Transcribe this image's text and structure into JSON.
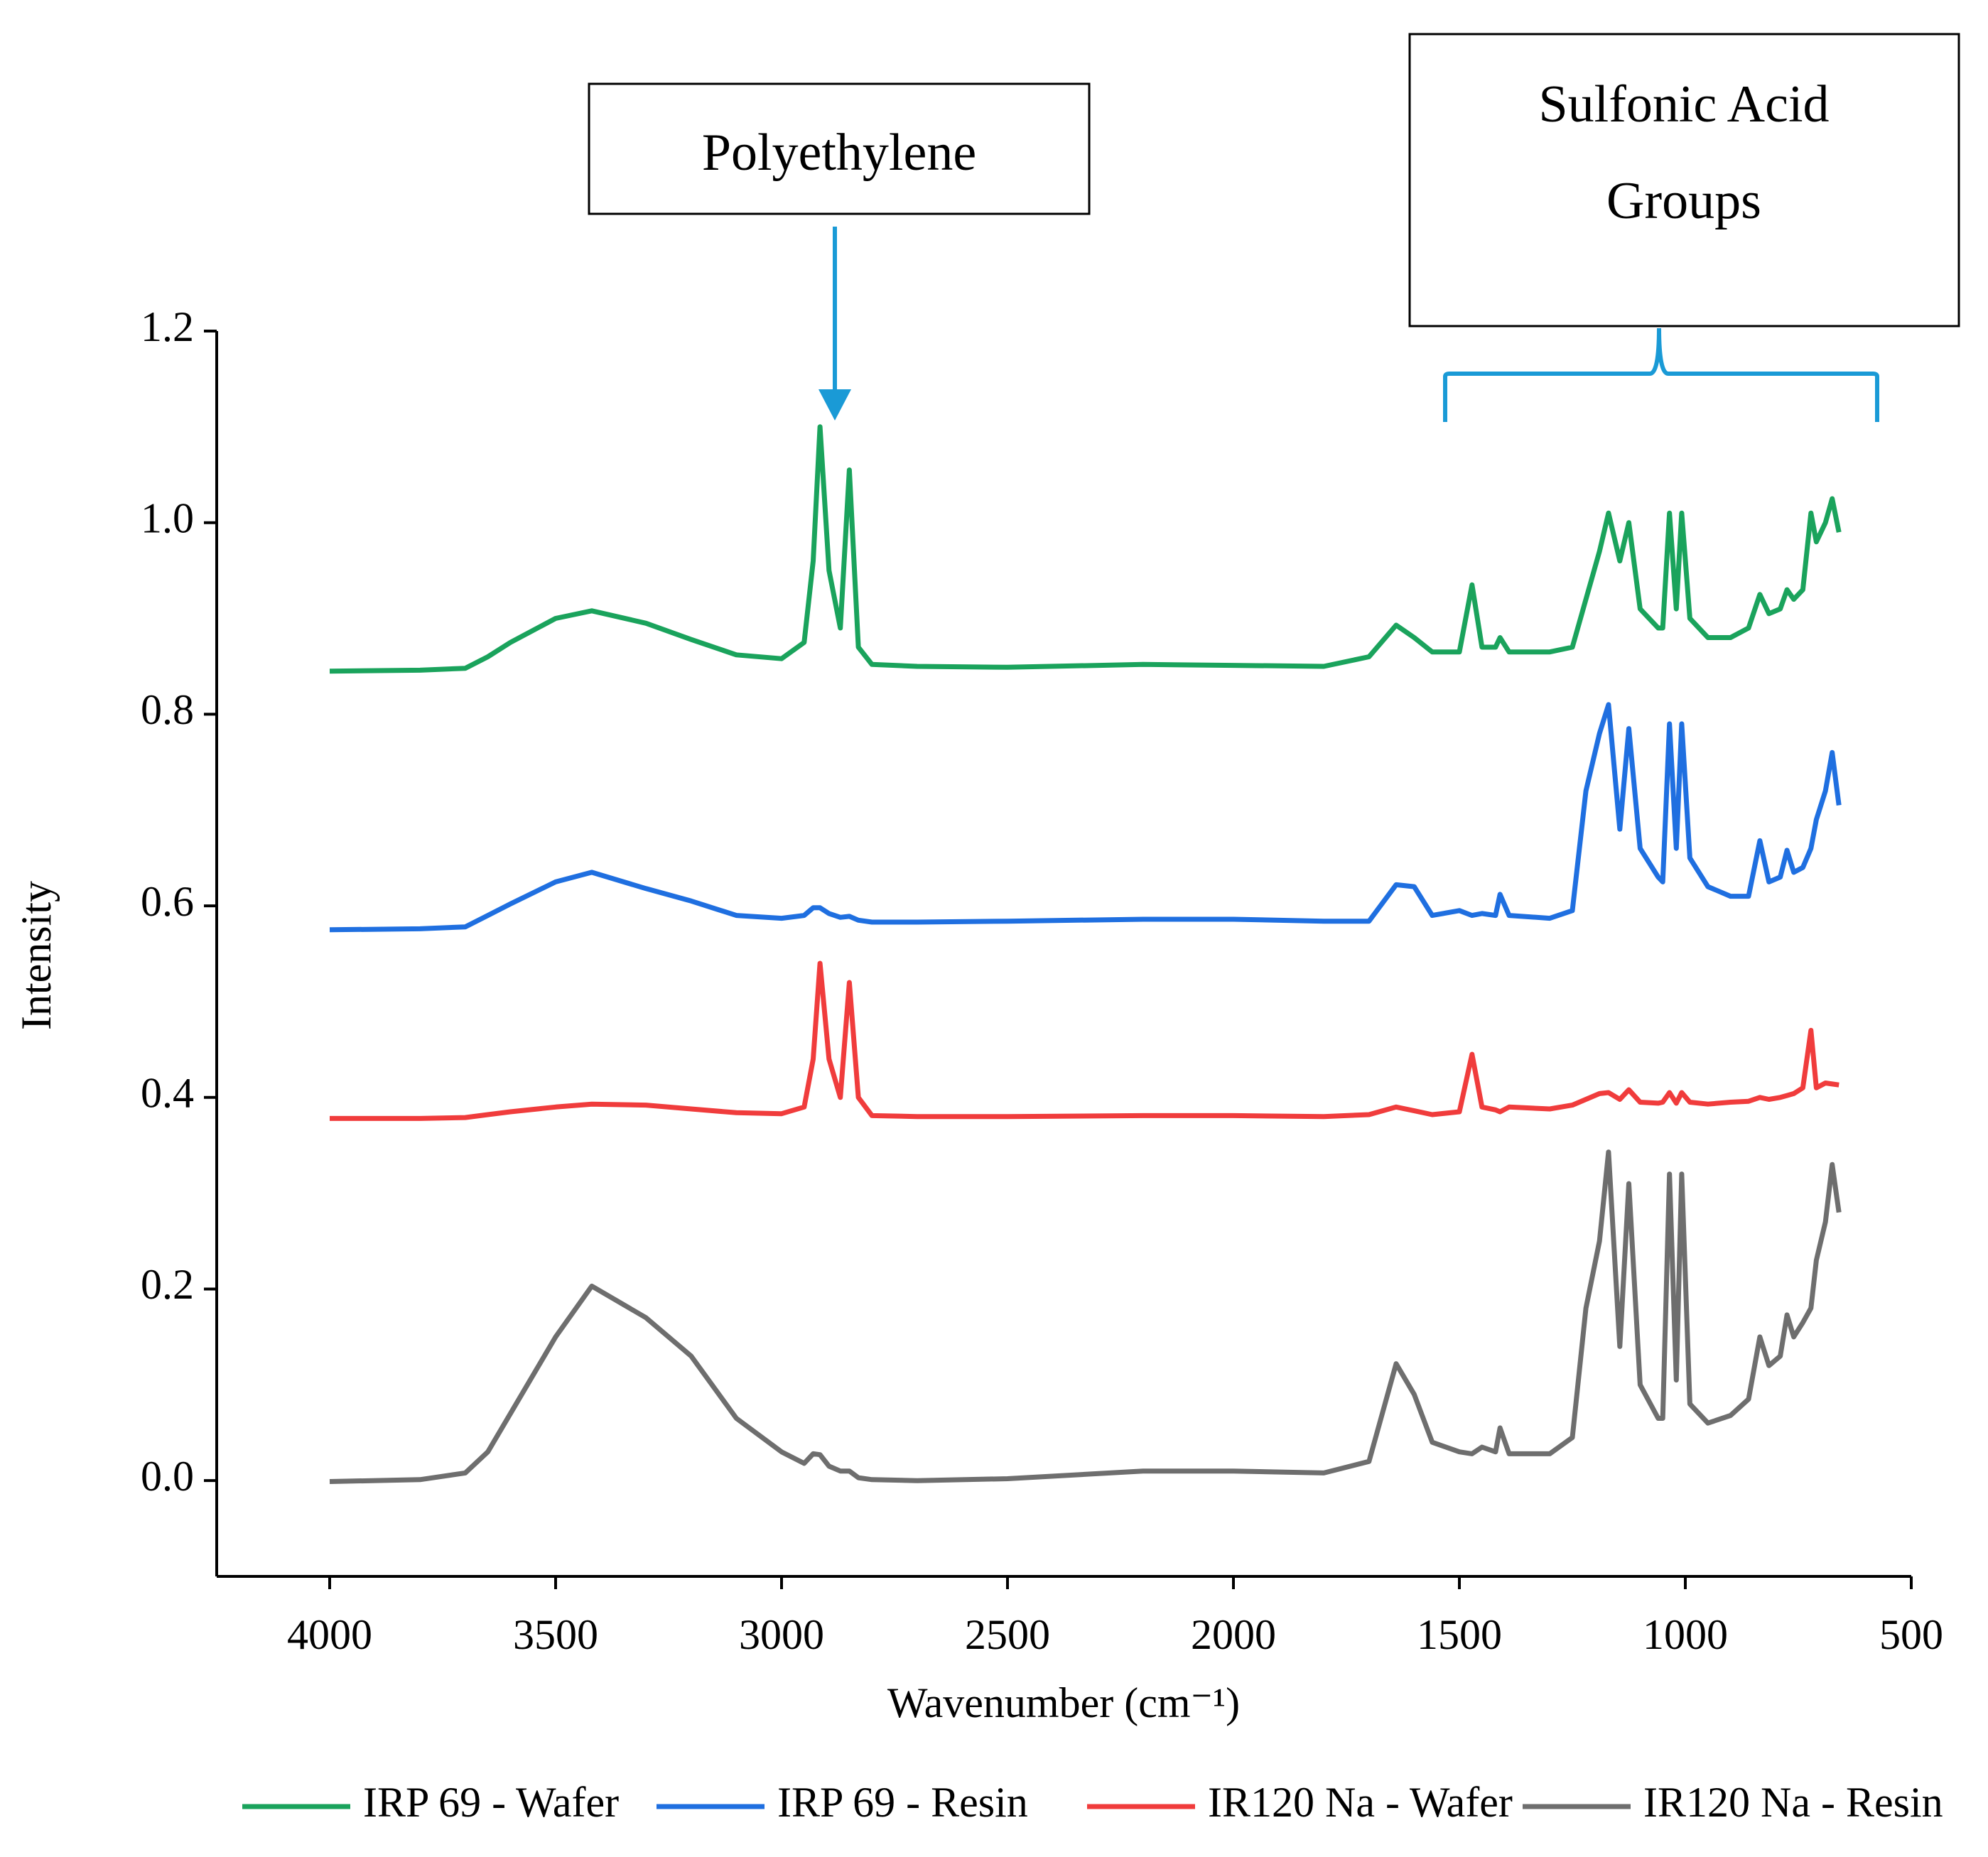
{
  "chart_data": {
    "type": "line",
    "xlabel": "Wavenumber (cm⁻¹)",
    "ylabel": "Intensity",
    "annotations": [
      "Polyethylene",
      "Sulfonic Acid",
      "Groups"
    ],
    "xlim": [
      4250,
      500
    ],
    "xticks": [
      4000,
      3500,
      3000,
      2500,
      2000,
      1500,
      1000,
      500
    ],
    "ylim": [
      -0.1,
      1.2
    ],
    "yticks": [
      {
        "value": 0,
        "label": "0.0"
      },
      0.2,
      0.4,
      0.6,
      0.8,
      {
        "value": 1,
        "label": "1.0"
      },
      1.2
    ],
    "x": [
      4000,
      3800,
      3700,
      3650,
      3600,
      3500,
      3420,
      3300,
      3200,
      3100,
      3000,
      2950,
      2930,
      2915,
      2895,
      2870,
      2850,
      2830,
      2800,
      2700,
      2500,
      2200,
      2000,
      1800,
      1700,
      1640,
      1600,
      1560,
      1500,
      1472,
      1450,
      1420,
      1410,
      1390,
      1300,
      1250,
      1220,
      1190,
      1170,
      1145,
      1125,
      1100,
      1060,
      1050,
      1035,
      1020,
      1008,
      990,
      950,
      900,
      860,
      835,
      815,
      790,
      775,
      760,
      740,
      722,
      710,
      690,
      675,
      660
    ],
    "series": [
      {
        "name": "IRP 69 - Wafer",
        "color": "#1aa35c",
        "values": [
          0.845,
          0.846,
          0.848,
          0.86,
          0.875,
          0.9,
          0.908,
          0.895,
          0.878,
          0.862,
          0.858,
          0.875,
          0.96,
          1.1,
          0.95,
          0.89,
          1.055,
          0.87,
          0.852,
          0.85,
          0.849,
          0.852,
          0.851,
          0.85,
          0.86,
          0.893,
          0.88,
          0.865,
          0.865,
          0.935,
          0.87,
          0.87,
          0.88,
          0.865,
          0.865,
          0.87,
          0.92,
          0.97,
          1.01,
          0.96,
          1.0,
          0.91,
          0.89,
          0.89,
          1.01,
          0.91,
          1.01,
          0.9,
          0.88,
          0.88,
          0.89,
          0.925,
          0.905,
          0.91,
          0.93,
          0.92,
          0.93,
          1.01,
          0.98,
          1.0,
          1.025,
          0.99
        ]
      },
      {
        "name": "IRP 69 - Resin",
        "color": "#1f6fe0",
        "values": [
          0.575,
          0.576,
          0.578,
          0.59,
          0.602,
          0.625,
          0.635,
          0.618,
          0.605,
          0.59,
          0.587,
          0.59,
          0.598,
          0.598,
          0.592,
          0.588,
          0.589,
          0.585,
          0.583,
          0.583,
          0.584,
          0.586,
          0.586,
          0.584,
          0.584,
          0.622,
          0.62,
          0.59,
          0.595,
          0.59,
          0.592,
          0.59,
          0.612,
          0.59,
          0.587,
          0.595,
          0.72,
          0.78,
          0.81,
          0.68,
          0.785,
          0.66,
          0.63,
          0.625,
          0.79,
          0.66,
          0.79,
          0.65,
          0.62,
          0.61,
          0.61,
          0.668,
          0.625,
          0.63,
          0.658,
          0.635,
          0.64,
          0.66,
          0.69,
          0.72,
          0.76,
          0.705
        ]
      },
      {
        "name": "IR120 Na - Wafer",
        "color": "#f03c3c",
        "values": [
          0.378,
          0.378,
          0.379,
          0.382,
          0.385,
          0.39,
          0.393,
          0.392,
          0.388,
          0.384,
          0.383,
          0.39,
          0.44,
          0.54,
          0.44,
          0.4,
          0.52,
          0.4,
          0.381,
          0.38,
          0.38,
          0.381,
          0.381,
          0.38,
          0.382,
          0.39,
          0.386,
          0.382,
          0.385,
          0.445,
          0.39,
          0.387,
          0.385,
          0.39,
          0.388,
          0.392,
          0.398,
          0.404,
          0.405,
          0.398,
          0.408,
          0.395,
          0.394,
          0.395,
          0.405,
          0.394,
          0.405,
          0.395,
          0.393,
          0.395,
          0.396,
          0.4,
          0.398,
          0.4,
          0.402,
          0.404,
          0.41,
          0.47,
          0.41,
          0.415,
          0.414,
          0.413
        ]
      },
      {
        "name": "IR120 Na - Resin",
        "color": "#6e6e6e",
        "values": [
          -0.001,
          0.001,
          0.008,
          0.03,
          0.07,
          0.15,
          0.203,
          0.17,
          0.13,
          0.065,
          0.03,
          0.018,
          0.028,
          0.027,
          0.015,
          0.01,
          0.01,
          0.003,
          0.001,
          0.0,
          0.002,
          0.01,
          0.01,
          0.008,
          0.02,
          0.122,
          0.09,
          0.04,
          0.03,
          0.028,
          0.035,
          0.03,
          0.055,
          0.028,
          0.028,
          0.045,
          0.18,
          0.25,
          0.343,
          0.14,
          0.31,
          0.1,
          0.065,
          0.065,
          0.32,
          0.105,
          0.32,
          0.08,
          0.06,
          0.068,
          0.085,
          0.15,
          0.12,
          0.13,
          0.173,
          0.15,
          0.165,
          0.18,
          0.23,
          0.27,
          0.33,
          0.28
        ]
      }
    ]
  }
}
